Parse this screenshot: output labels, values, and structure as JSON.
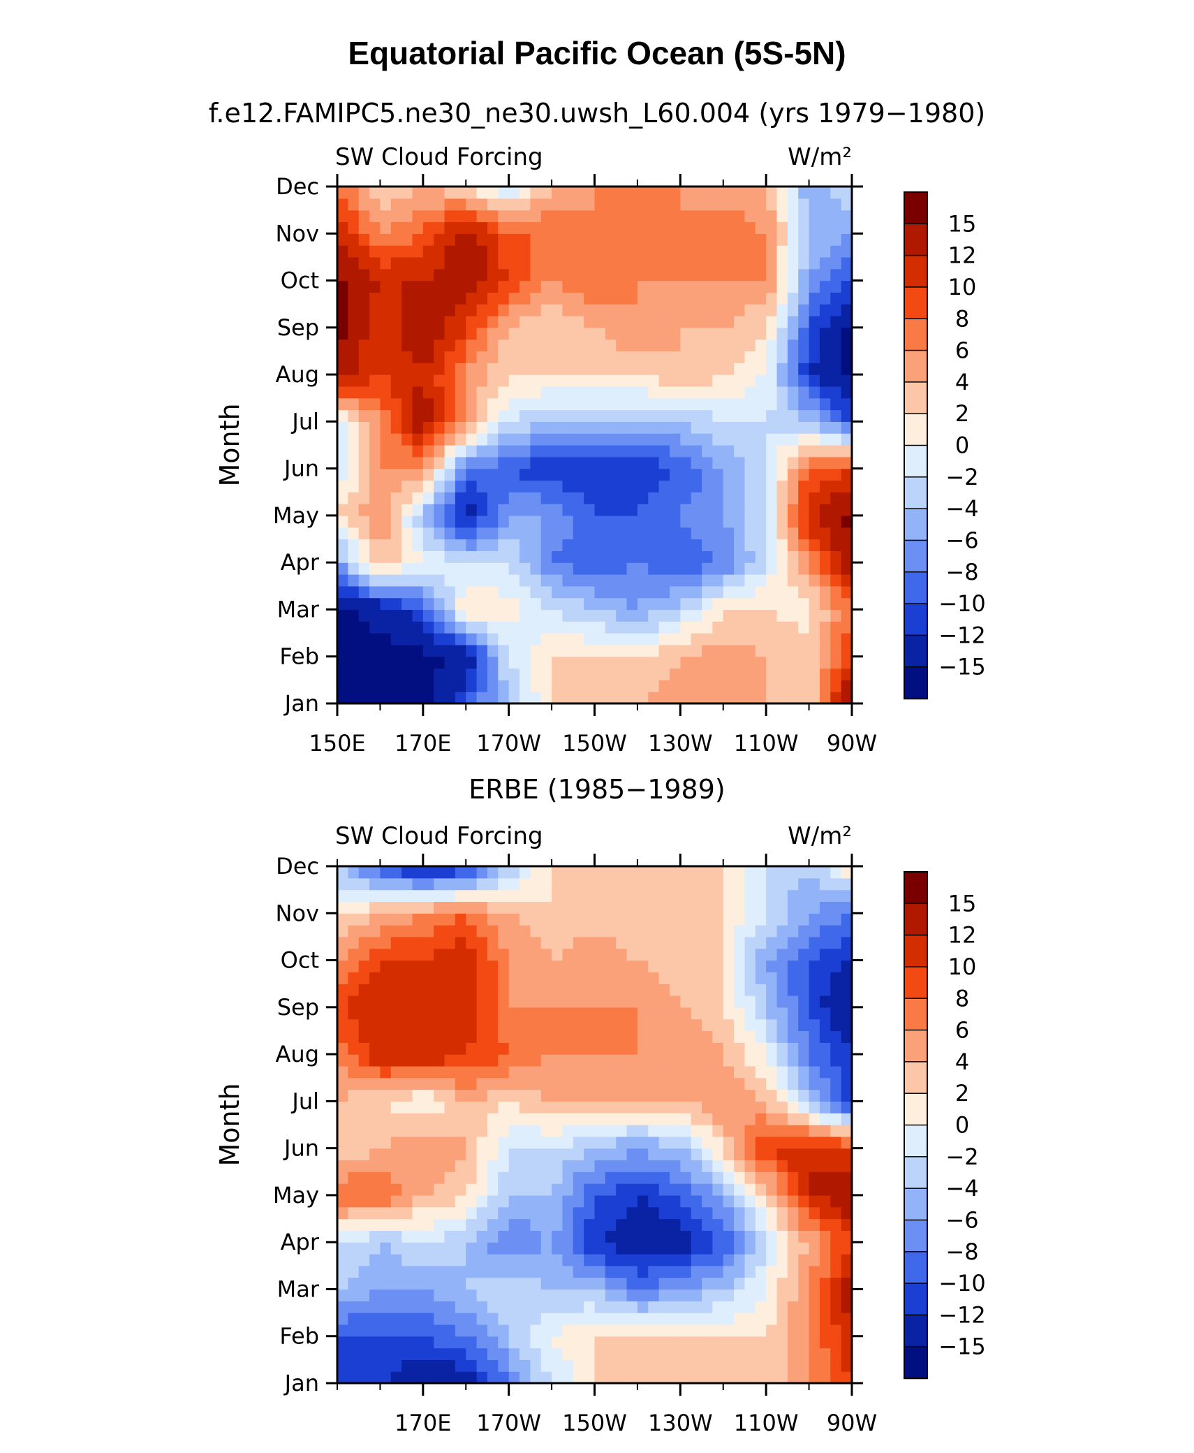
{
  "title": "Equatorial Pacific Ocean (5S-5N)",
  "chart_data": [
    {
      "type": "heatmap",
      "subtitle": "f.e12.FAMIPC5.ne30_ne30.uwsh_L60.004 (yrs 1979−1980)",
      "variable_label": "SW Cloud Forcing",
      "units_label": "W/m²",
      "xlabel": "",
      "ylabel": "Month",
      "x_ticks": [
        "150E",
        "170E",
        "170W",
        "150W",
        "130W",
        "110W",
        "90W"
      ],
      "x_tick_values": [
        150,
        170,
        190,
        210,
        230,
        250,
        270
      ],
      "y_ticks": [
        "Jan",
        "Feb",
        "Mar",
        "Apr",
        "May",
        "Jun",
        "Jul",
        "Aug",
        "Sep",
        "Oct",
        "Nov",
        "Dec"
      ],
      "xlim": [
        150,
        270
      ],
      "ylim": [
        1,
        12
      ],
      "x_grid": [
        150,
        160,
        170,
        180,
        190,
        200,
        210,
        220,
        230,
        240,
        250,
        260,
        270
      ],
      "values": [
        [
          -16,
          -16,
          -16,
          -10,
          -4,
          2,
          4,
          4,
          5,
          4,
          4,
          2,
          16
        ],
        [
          -16,
          -16,
          -16,
          -14,
          -2,
          2,
          2,
          2,
          4,
          5,
          4,
          3,
          10
        ],
        [
          -16,
          -14,
          -10,
          2,
          1,
          -2,
          -4,
          -6,
          -3,
          2,
          2,
          1,
          8
        ],
        [
          -6,
          4,
          0,
          -2,
          -2,
          -8,
          -10,
          -8,
          -10,
          -8,
          -2,
          6,
          14
        ],
        [
          2,
          6,
          -4,
          -14,
          -6,
          -6,
          -10,
          -10,
          -8,
          -6,
          -2,
          12,
          16
        ],
        [
          -2,
          6,
          6,
          -8,
          -10,
          -12,
          -12,
          -12,
          -10,
          -6,
          -2,
          8,
          10
        ],
        [
          -2,
          6,
          14,
          6,
          -2,
          -4,
          -4,
          -4,
          -4,
          -2,
          -2,
          -4,
          -10
        ],
        [
          14,
          10,
          12,
          6,
          2,
          2,
          2,
          2,
          4,
          2,
          0,
          -12,
          -16
        ],
        [
          16,
          10,
          14,
          10,
          4,
          2,
          4,
          6,
          4,
          4,
          2,
          -10,
          -16
        ],
        [
          16,
          12,
          12,
          14,
          10,
          6,
          8,
          6,
          6,
          6,
          6,
          -6,
          -10
        ],
        [
          12,
          6,
          8,
          14,
          8,
          8,
          6,
          8,
          6,
          8,
          6,
          -4,
          -6
        ],
        [
          8,
          2,
          4,
          2,
          -2,
          4,
          6,
          6,
          6,
          4,
          4,
          -6,
          -2
        ]
      ]
    },
    {
      "type": "heatmap",
      "subtitle": "ERBE (1985−1989)",
      "variable_label": "SW Cloud Forcing",
      "units_label": "W/m²",
      "xlabel": "",
      "ylabel": "Month",
      "x_ticks": [
        "170E",
        "170W",
        "150W",
        "130W",
        "110W",
        "90W"
      ],
      "x_tick_values": [
        170,
        190,
        210,
        230,
        250,
        270
      ],
      "y_ticks": [
        "Jan",
        "Feb",
        "Mar",
        "Apr",
        "May",
        "Jun",
        "Jul",
        "Aug",
        "Sep",
        "Oct",
        "Nov",
        "Dec"
      ],
      "xlim": [
        150,
        270
      ],
      "ylim": [
        1,
        12
      ],
      "x_grid": [
        150,
        160,
        170,
        180,
        190,
        200,
        210,
        220,
        230,
        240,
        250,
        260,
        270
      ],
      "values": [
        [
          -10,
          -12,
          -14,
          -14,
          -8,
          -2,
          2,
          2,
          2,
          2,
          2,
          6,
          10
        ],
        [
          -10,
          -10,
          -10,
          -8,
          -4,
          0,
          2,
          2,
          2,
          2,
          2,
          6,
          12
        ],
        [
          -4,
          -6,
          -6,
          -4,
          -2,
          -4,
          -4,
          -8,
          -6,
          -4,
          0,
          6,
          14
        ],
        [
          -2,
          -4,
          -2,
          -4,
          -8,
          -6,
          -12,
          -14,
          -14,
          -10,
          -2,
          4,
          10
        ],
        [
          8,
          8,
          4,
          2,
          -4,
          -4,
          -10,
          -12,
          -10,
          -6,
          2,
          12,
          14
        ],
        [
          2,
          4,
          6,
          4,
          -2,
          -2,
          -4,
          -6,
          -4,
          2,
          10,
          12,
          10
        ],
        [
          4,
          2,
          0,
          4,
          2,
          4,
          4,
          4,
          4,
          6,
          4,
          -4,
          -12
        ],
        [
          6,
          12,
          12,
          10,
          8,
          6,
          6,
          6,
          6,
          4,
          0,
          -8,
          -12
        ],
        [
          10,
          12,
          10,
          12,
          6,
          6,
          6,
          6,
          4,
          2,
          -4,
          -10,
          -16
        ],
        [
          6,
          10,
          10,
          12,
          6,
          4,
          6,
          4,
          2,
          2,
          -6,
          -10,
          -12
        ],
        [
          2,
          4,
          6,
          8,
          4,
          2,
          2,
          2,
          4,
          2,
          -2,
          -6,
          -8
        ],
        [
          -4,
          -10,
          -14,
          -12,
          -4,
          2,
          2,
          2,
          2,
          2,
          -2,
          -4,
          2
        ]
      ]
    }
  ],
  "colorbar": {
    "labels": [
      "15",
      "12",
      "10",
      "8",
      "6",
      "4",
      "2",
      "0",
      "−2",
      "−4",
      "−6",
      "−8",
      "−10",
      "−12",
      "−15"
    ],
    "boundaries": [
      15,
      12,
      10,
      8,
      6,
      4,
      2,
      0,
      -2,
      -4,
      -6,
      -8,
      -10,
      -12,
      -15
    ],
    "colors": [
      "#7a0000",
      "#b01800",
      "#d42d00",
      "#f24a12",
      "#f97a45",
      "#fba17a",
      "#fcc7a8",
      "#fdeedd",
      "#dfeefc",
      "#bcd3fa",
      "#93b3f8",
      "#6b8ff2",
      "#3f68ea",
      "#1a3fd2",
      "#0a22a4",
      "#020f80"
    ]
  }
}
